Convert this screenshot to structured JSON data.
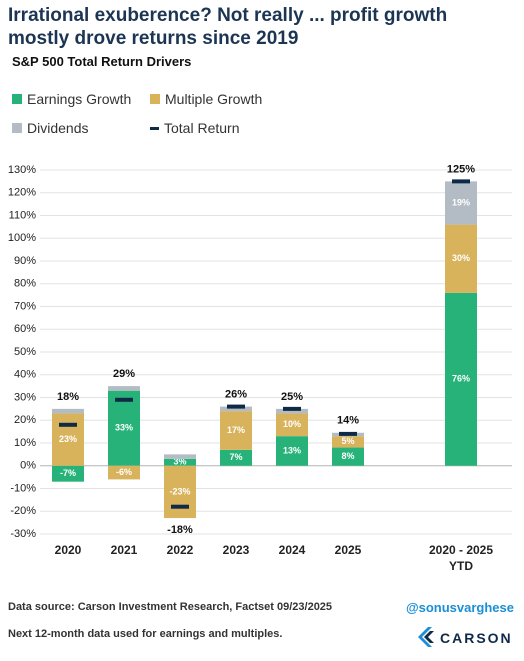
{
  "chart_data": {
    "type": "bar",
    "stacked": true,
    "title": "Irrational exuberence? Not really ... profit growth mostly drove returns since 2019",
    "subtitle": "S&P 500 Total Return Drivers",
    "categories": [
      "2020",
      "2021",
      "2022",
      "2023",
      "2024",
      "2025",
      "2020 - 2025 YTD"
    ],
    "series": [
      {
        "name": "Earnings Growth",
        "color": "#27b27a",
        "values": [
          -7,
          33,
          3,
          7,
          13,
          8,
          76
        ],
        "value_labels": [
          "-7%",
          "33%",
          "3%",
          "7%",
          "13%",
          "8%",
          "76%"
        ]
      },
      {
        "name": "Multiple Growth",
        "color": "#d8b35c",
        "values": [
          23,
          -6,
          -23,
          17,
          10,
          5,
          30
        ],
        "value_labels": [
          "23%",
          "-6%",
          "-23%",
          "17%",
          "10%",
          "5%",
          "30%"
        ]
      },
      {
        "name": "Dividends",
        "color": "#b3bcc4",
        "values": [
          2,
          2,
          2,
          2,
          2,
          1.5,
          19
        ],
        "value_labels": [
          null,
          null,
          null,
          null,
          null,
          null,
          "19%"
        ]
      },
      {
        "name": "Total Return",
        "type": "marker",
        "color": "#0e2a47",
        "values": [
          18,
          29,
          -18,
          26,
          25,
          14,
          125
        ],
        "value_labels": [
          "18%",
          "29%",
          "-18%",
          "26%",
          "25%",
          "14%",
          "125%"
        ]
      }
    ],
    "ylim": [
      -30,
      130
    ],
    "yticks": [
      {
        "value": -30,
        "label": "-30%"
      },
      {
        "value": -20,
        "label": "-20%"
      },
      {
        "value": -10,
        "label": "-10%"
      },
      {
        "value": 0,
        "label": "0%"
      },
      {
        "value": 10,
        "label": "10%"
      },
      {
        "value": 20,
        "label": "20%"
      },
      {
        "value": 30,
        "label": "30%"
      },
      {
        "value": 40,
        "label": "40%"
      },
      {
        "value": 50,
        "label": "50%"
      },
      {
        "value": 60,
        "label": "60%"
      },
      {
        "value": 70,
        "label": "70%"
      },
      {
        "value": 80,
        "label": "80%"
      },
      {
        "value": 90,
        "label": "90%"
      },
      {
        "value": 100,
        "label": "100%"
      },
      {
        "value": 110,
        "label": "110%"
      },
      {
        "value": 120,
        "label": "120%"
      },
      {
        "value": 130,
        "label": "130%"
      }
    ],
    "grid": true,
    "source": "Data source: Carson Investment Research, Factset  09/23/2025",
    "handle": "@sonusvarghese",
    "note": "Next 12-month data used for earnings and multiples.",
    "logo": "CARSON"
  }
}
